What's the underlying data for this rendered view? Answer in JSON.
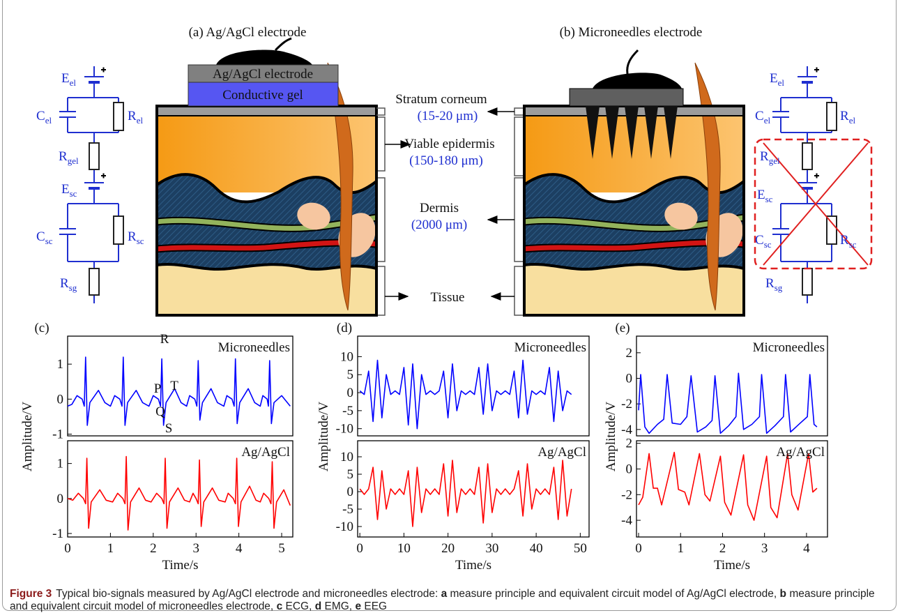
{
  "figure": {
    "panel_a": {
      "title": "(a) Ag/AgCl electrode",
      "electrode": "Ag/AgCl electrode",
      "gel": "Conductive gel"
    },
    "panel_b": {
      "title": "(b) Microneedles electrode"
    },
    "layers": [
      {
        "name": "Stratum corneum",
        "thickness": "(15-20 μm)"
      },
      {
        "name": "Viable epidermis",
        "thickness": "(150-180 μm)"
      },
      {
        "name": "Dermis",
        "thickness": "(2000 μm)"
      },
      {
        "name": "Tissue"
      }
    ],
    "circuit_a": [
      {
        "main": "E",
        "sub": "el"
      },
      {
        "main": "C",
        "sub": "el"
      },
      {
        "main": "R",
        "sub": "el"
      },
      {
        "main": "R",
        "sub": "gel"
      },
      {
        "main": "E",
        "sub": "sc"
      },
      {
        "main": "C",
        "sub": "sc"
      },
      {
        "main": "R",
        "sub": "sc"
      },
      {
        "main": "R",
        "sub": "sg"
      }
    ],
    "circuit_b": [
      {
        "main": "E",
        "sub": "el"
      },
      {
        "main": "C",
        "sub": "el"
      },
      {
        "main": "R",
        "sub": "el"
      },
      {
        "main": "R",
        "sub": "gel"
      },
      {
        "main": "E",
        "sub": "sc"
      },
      {
        "main": "C",
        "sub": "sc"
      },
      {
        "main": "R",
        "sub": "sc"
      },
      {
        "main": "R",
        "sub": "sg"
      }
    ]
  },
  "chart_data": [
    {
      "type": "line",
      "panel": "(c)",
      "ylabel": "Amplitude/V",
      "x": [
        0,
        0.1,
        0.22,
        0.34,
        0.39,
        0.42,
        0.46,
        0.52,
        0.72,
        0.87,
        1.0,
        1.1,
        1.22,
        1.27,
        1.3,
        1.34,
        1.4,
        1.6,
        1.75,
        1.9,
        2.0,
        2.12,
        2.17,
        2.2,
        2.24,
        2.3,
        2.5,
        2.65,
        2.78,
        2.85,
        2.97,
        3.02,
        3.05,
        3.09,
        3.15,
        3.35,
        3.5,
        3.65,
        3.72,
        3.84,
        3.89,
        3.92,
        3.96,
        4.02,
        4.22,
        4.37,
        4.5,
        4.56,
        4.66,
        4.69,
        4.72,
        4.76,
        4.82,
        5.0,
        5.2
      ],
      "series": [
        {
          "name": "Microneedles",
          "color": "#0000ff",
          "values": [
            -0.2,
            -0.15,
            0.1,
            0.0,
            -0.2,
            1.2,
            -0.75,
            -0.1,
            0.25,
            -0.1,
            -0.2,
            0.1,
            0.0,
            -0.2,
            1.2,
            -0.75,
            -0.1,
            0.25,
            -0.1,
            -0.2,
            0.1,
            0.0,
            -0.2,
            1.15,
            -0.75,
            -0.1,
            0.3,
            -0.1,
            -0.2,
            0.1,
            0.0,
            -0.2,
            1.1,
            -0.6,
            -0.1,
            0.3,
            -0.1,
            -0.2,
            0.1,
            0.0,
            -0.2,
            1.15,
            -0.7,
            -0.1,
            0.3,
            -0.1,
            -0.2,
            0.1,
            0.0,
            -0.2,
            1.1,
            -0.7,
            -0.1,
            0.1,
            -0.2
          ]
        }
      ],
      "xlim": [
        0,
        5.26
      ],
      "ylim": [
        -1.05,
        1.8
      ],
      "yticks": [
        -1,
        0,
        1
      ],
      "annotations": [
        "R",
        "P",
        "T",
        "Q",
        "S"
      ]
    },
    {
      "type": "line",
      "xlabel": "Time/s",
      "x": [
        0,
        0.12,
        0.25,
        0.37,
        0.42,
        0.45,
        0.49,
        0.55,
        0.75,
        0.9,
        1.05,
        1.17,
        1.29,
        1.34,
        1.37,
        1.41,
        1.47,
        1.67,
        1.82,
        1.95,
        2.08,
        2.2,
        2.25,
        2.28,
        2.32,
        2.38,
        2.58,
        2.73,
        2.85,
        2.93,
        3.0,
        3.05,
        3.08,
        3.12,
        3.18,
        3.38,
        3.53,
        3.68,
        3.75,
        3.87,
        3.92,
        3.95,
        3.99,
        4.05,
        4.25,
        4.4,
        4.5,
        4.58,
        4.7,
        4.75,
        4.78,
        4.82,
        4.88,
        5.05,
        5.2
      ],
      "series": [
        {
          "name": "Ag/AgCl",
          "color": "#ff0000",
          "values": [
            0.0,
            -0.05,
            0.15,
            0.0,
            -0.15,
            1.15,
            -0.85,
            -0.1,
            0.25,
            -0.05,
            -0.1,
            0.15,
            0.0,
            -0.15,
            1.2,
            -0.9,
            -0.1,
            0.3,
            -0.05,
            -0.1,
            0.15,
            0.0,
            -0.15,
            1.15,
            -0.85,
            -0.1,
            0.3,
            -0.05,
            -0.1,
            0.15,
            0.0,
            -0.15,
            1.1,
            -0.8,
            -0.1,
            0.3,
            -0.05,
            -0.1,
            0.15,
            0.0,
            -0.15,
            1.15,
            -0.8,
            -0.1,
            0.35,
            -0.05,
            -0.1,
            0.15,
            0.0,
            -0.15,
            1.05,
            -0.85,
            -0.1,
            0.25,
            -0.2
          ]
        }
      ],
      "xlim": [
        0,
        5.26
      ],
      "ylim": [
        -1.1,
        1.65
      ],
      "yticks": [
        -1,
        0,
        1
      ],
      "xticks": [
        0,
        1,
        2,
        3,
        4,
        5
      ]
    },
    {
      "type": "line",
      "panel": "(d)",
      "ylabel": "Amplitude/V",
      "x": [
        0,
        1,
        2,
        3,
        4,
        5,
        6,
        7,
        8,
        9,
        10,
        11,
        12,
        13,
        14,
        15,
        16,
        17,
        18,
        19,
        20,
        21,
        22,
        23,
        24,
        25,
        26,
        27,
        28,
        29,
        30,
        31,
        32,
        33,
        34,
        35,
        36,
        37,
        38,
        39,
        40,
        41,
        42,
        43,
        44,
        45,
        46,
        47,
        48
      ],
      "series": [
        {
          "name": "Microneedles",
          "color": "#0000ff",
          "values": [
            0.5,
            -0.5,
            6,
            -8,
            9,
            -7,
            5,
            -0.5,
            0.5,
            -0.5,
            7,
            -9,
            8,
            -10,
            5,
            -0.5,
            0.5,
            -0.5,
            0.5,
            6,
            -7,
            8,
            -5,
            0.5,
            -0.5,
            0.5,
            -0.5,
            7,
            -6,
            8,
            -5,
            0.5,
            -0.5,
            0.5,
            -0.5,
            6,
            -7,
            9,
            -6,
            0.5,
            -0.5,
            0.5,
            -0.5,
            7,
            -8,
            6,
            -5,
            0.5,
            -0.5
          ]
        }
      ],
      "xlim": [
        -0.5,
        52
      ],
      "ylim": [
        -12,
        15.7
      ],
      "yticks": [
        -10,
        -5,
        0,
        5,
        10
      ]
    },
    {
      "type": "line",
      "xlabel": "Time/s",
      "x": [
        0,
        1,
        2,
        3,
        4,
        5,
        6,
        7,
        8,
        9,
        10,
        11,
        12,
        13,
        14,
        15,
        16,
        17,
        18,
        19,
        20,
        21,
        22,
        23,
        24,
        25,
        26,
        27,
        28,
        29,
        30,
        31,
        32,
        33,
        34,
        35,
        36,
        37,
        38,
        39,
        40,
        41,
        42,
        43,
        44,
        45,
        46,
        47,
        48
      ],
      "series": [
        {
          "name": "Ag/AgCl",
          "color": "#ff0000",
          "values": [
            0.8,
            -0.8,
            0.8,
            7,
            -8,
            6,
            -5,
            0.8,
            -0.8,
            0.8,
            -0.8,
            6,
            -10,
            7,
            -6,
            0.8,
            -0.8,
            0.8,
            -0.8,
            8,
            -7,
            9,
            -6,
            0.8,
            -0.8,
            0.8,
            -0.8,
            7,
            -9,
            8,
            -6,
            0.8,
            -0.8,
            0.8,
            -0.8,
            0.8,
            6,
            -7,
            8,
            -5,
            0.8,
            -0.8,
            0.8,
            -0.8,
            7,
            -8,
            9,
            -7,
            0.8
          ]
        }
      ],
      "xlim": [
        -0.5,
        52
      ],
      "ylim": [
        -13,
        14.6
      ],
      "yticks": [
        -10,
        -5,
        0,
        5,
        10
      ],
      "xticks": [
        0,
        10,
        20,
        30,
        40,
        50
      ]
    },
    {
      "type": "line",
      "panel": "(e)",
      "ylabel": "Amplitude/V",
      "x": [
        0,
        0.05,
        0.15,
        0.25,
        0.45,
        0.6,
        0.68,
        0.8,
        1.0,
        1.15,
        1.25,
        1.4,
        1.6,
        1.75,
        1.82,
        1.95,
        2.15,
        2.32,
        2.38,
        2.5,
        2.7,
        2.88,
        2.93,
        3.05,
        3.25,
        3.45,
        3.5,
        3.62,
        3.85,
        4.02,
        4.08,
        4.18,
        4.25
      ],
      "series": [
        {
          "name": "Microneedles",
          "color": "#0000ff",
          "values": [
            -2.5,
            0.3,
            -3.8,
            -4.3,
            -3.6,
            -3.2,
            0.3,
            -3.5,
            -3.6,
            -3.0,
            0.2,
            -4.2,
            -3.8,
            -3.3,
            0.2,
            -4.3,
            -3.7,
            -3.0,
            0.4,
            -4.0,
            -3.6,
            -3.0,
            0.3,
            -4.3,
            -3.7,
            -3.0,
            0.3,
            -4.2,
            -3.5,
            -3.0,
            0.3,
            -3.6,
            -3.8
          ]
        }
      ],
      "xlim": [
        -0.05,
        4.5
      ],
      "ylim": [
        -4.5,
        3.3
      ],
      "yticks": [
        -4,
        -2,
        0,
        2
      ]
    },
    {
      "type": "line",
      "xlabel": "Time/s",
      "x": [
        0,
        0.1,
        0.25,
        0.35,
        0.45,
        0.55,
        0.85,
        0.95,
        1.1,
        1.2,
        1.45,
        1.58,
        1.7,
        1.95,
        2.05,
        2.2,
        2.5,
        2.6,
        2.75,
        3.05,
        3.15,
        3.3,
        3.55,
        3.65,
        3.8,
        4.05,
        4.15,
        4.25
      ],
      "series": [
        {
          "name": "Ag/AgCl",
          "color": "#ff0000",
          "values": [
            -2.8,
            -2.2,
            1.2,
            -1.5,
            -1.5,
            -2.8,
            1.3,
            -1.6,
            -1.8,
            -2.8,
            1.2,
            -2.0,
            -2.5,
            1.0,
            -2.6,
            -3.6,
            1.1,
            -2.8,
            -4.0,
            1.0,
            -3.0,
            -3.8,
            1.2,
            -2.0,
            -3.2,
            1.2,
            -1.8,
            -1.5
          ]
        }
      ],
      "xlim": [
        -0.05,
        4.5
      ],
      "ylim": [
        -5.3,
        2.2
      ],
      "yticks": [
        -4,
        -2,
        0,
        2
      ],
      "xticks": [
        0,
        1,
        2,
        3,
        4
      ]
    }
  ],
  "caption": {
    "label": "Figure 3",
    "parts": [
      {
        "text": "Typical bio-signals measured by Ag/AgCl electrode and microneedles electrode:",
        "bold": false
      },
      {
        "text": "a",
        "bold": true
      },
      {
        "text": "measure principle and equivalent circuit model of Ag/AgCl electrode,",
        "bold": false
      },
      {
        "text": "b",
        "bold": true
      },
      {
        "text": "measure principle and equivalent circuit model of microneedles electrode,",
        "bold": false
      },
      {
        "text": "c",
        "bold": true
      },
      {
        "text": "ECG,",
        "bold": false
      },
      {
        "text": "d",
        "bold": true
      },
      {
        "text": "EMG,",
        "bold": false
      },
      {
        "text": "e",
        "bold": true
      },
      {
        "text": "EEG",
        "bold": false
      }
    ]
  }
}
